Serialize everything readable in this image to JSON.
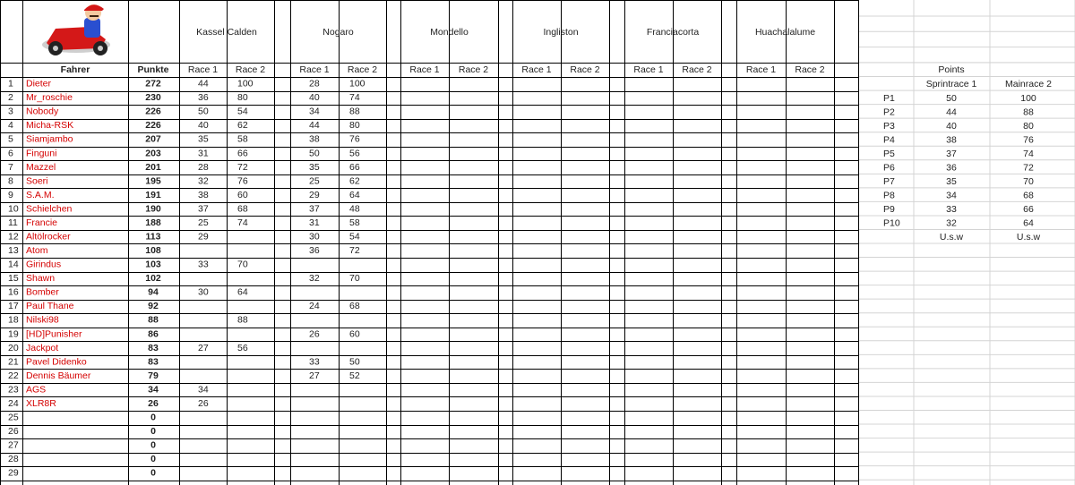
{
  "header": {
    "driver_label": "Fahrer",
    "points_label": "Punkte"
  },
  "tracks": [
    {
      "name": "Kassel Calden",
      "races": [
        "Race 1",
        "Race 2"
      ]
    },
    {
      "name": "Nogaro",
      "races": [
        "Race 1",
        "Race 2"
      ]
    },
    {
      "name": "Mondello",
      "races": [
        "Race 1",
        "Race 2"
      ]
    },
    {
      "name": "Ingliston",
      "races": [
        "Race 1",
        "Race 2"
      ]
    },
    {
      "name": "Franciacorta",
      "races": [
        "Race 1",
        "Race 2"
      ]
    },
    {
      "name": "Huachalalume",
      "races": [
        "Race 1",
        "Race 2"
      ]
    }
  ],
  "rows": [
    {
      "no": 1,
      "name": "Dieter",
      "points": 272,
      "results": [
        44,
        100,
        28,
        100
      ]
    },
    {
      "no": 2,
      "name": "Mr_roschie",
      "points": 230,
      "results": [
        36,
        80,
        40,
        74
      ]
    },
    {
      "no": 3,
      "name": "Nobody",
      "points": 226,
      "results": [
        50,
        54,
        34,
        88
      ]
    },
    {
      "no": 4,
      "name": "Micha-RSK",
      "points": 226,
      "results": [
        40,
        62,
        44,
        80
      ]
    },
    {
      "no": 5,
      "name": "Siamjambo",
      "points": 207,
      "results": [
        35,
        58,
        38,
        76
      ]
    },
    {
      "no": 6,
      "name": "Finguni",
      "points": 203,
      "results": [
        31,
        66,
        50,
        56
      ]
    },
    {
      "no": 7,
      "name": "Mazzel",
      "points": 201,
      "results": [
        28,
        72,
        35,
        66
      ]
    },
    {
      "no": 8,
      "name": "Soeri",
      "points": 195,
      "results": [
        32,
        76,
        25,
        62
      ]
    },
    {
      "no": 9,
      "name": "S.A.M.",
      "points": 191,
      "results": [
        38,
        60,
        29,
        64
      ]
    },
    {
      "no": 10,
      "name": "Schielchen",
      "points": 190,
      "results": [
        37,
        68,
        37,
        48
      ]
    },
    {
      "no": 11,
      "name": "Francie",
      "points": 188,
      "results": [
        25,
        74,
        31,
        58
      ]
    },
    {
      "no": 12,
      "name": "Altölrocker",
      "points": 113,
      "results": [
        29,
        null,
        30,
        54
      ]
    },
    {
      "no": 13,
      "name": "Atom",
      "points": 108,
      "results": [
        null,
        null,
        36,
        72
      ]
    },
    {
      "no": 14,
      "name": "Girindus",
      "points": 103,
      "results": [
        33,
        70,
        null,
        null
      ]
    },
    {
      "no": 15,
      "name": "Shawn",
      "points": 102,
      "results": [
        null,
        null,
        32,
        70
      ]
    },
    {
      "no": 16,
      "name": "Bomber",
      "points": 94,
      "results": [
        30,
        64,
        null,
        null
      ]
    },
    {
      "no": 17,
      "name": "Paul Thane",
      "points": 92,
      "results": [
        null,
        null,
        24,
        68
      ]
    },
    {
      "no": 18,
      "name": "Nilski98",
      "points": 88,
      "results": [
        null,
        88,
        null,
        null
      ]
    },
    {
      "no": 19,
      "name": "[HD]Punisher",
      "points": 86,
      "results": [
        null,
        null,
        26,
        60
      ]
    },
    {
      "no": 20,
      "name": "Jackpot",
      "points": 83,
      "results": [
        27,
        56,
        null,
        null
      ]
    },
    {
      "no": 21,
      "name": "Pavel Didenko",
      "points": 83,
      "results": [
        null,
        null,
        33,
        50
      ]
    },
    {
      "no": 22,
      "name": "Dennis Bäumer",
      "points": 79,
      "results": [
        null,
        null,
        27,
        52
      ]
    },
    {
      "no": 23,
      "name": "AGS",
      "points": 34,
      "results": [
        34,
        null,
        null,
        null
      ]
    },
    {
      "no": 24,
      "name": "XLR8R",
      "points": 26,
      "results": [
        26,
        null,
        null,
        null
      ]
    },
    {
      "no": 25,
      "points": 0
    },
    {
      "no": 26,
      "points": 0
    },
    {
      "no": 27,
      "points": 0
    },
    {
      "no": 28,
      "points": 0
    },
    {
      "no": 29,
      "points": 0
    }
  ],
  "points_table": {
    "title": "Points",
    "columns": [
      "Sprintrace 1",
      "Mainrace 2"
    ],
    "rows": [
      {
        "place": "P1",
        "values": [
          50,
          100
        ]
      },
      {
        "place": "P2",
        "values": [
          44,
          88
        ]
      },
      {
        "place": "P3",
        "values": [
          40,
          80
        ]
      },
      {
        "place": "P4",
        "values": [
          38,
          76
        ]
      },
      {
        "place": "P5",
        "values": [
          37,
          74
        ]
      },
      {
        "place": "P6",
        "values": [
          36,
          72
        ]
      },
      {
        "place": "P7",
        "values": [
          35,
          70
        ]
      },
      {
        "place": "P8",
        "values": [
          34,
          68
        ]
      },
      {
        "place": "P9",
        "values": [
          33,
          66
        ]
      },
      {
        "place": "P10",
        "values": [
          32,
          64
        ]
      }
    ],
    "footer": [
      "U.s.w",
      "U.s.w"
    ]
  }
}
